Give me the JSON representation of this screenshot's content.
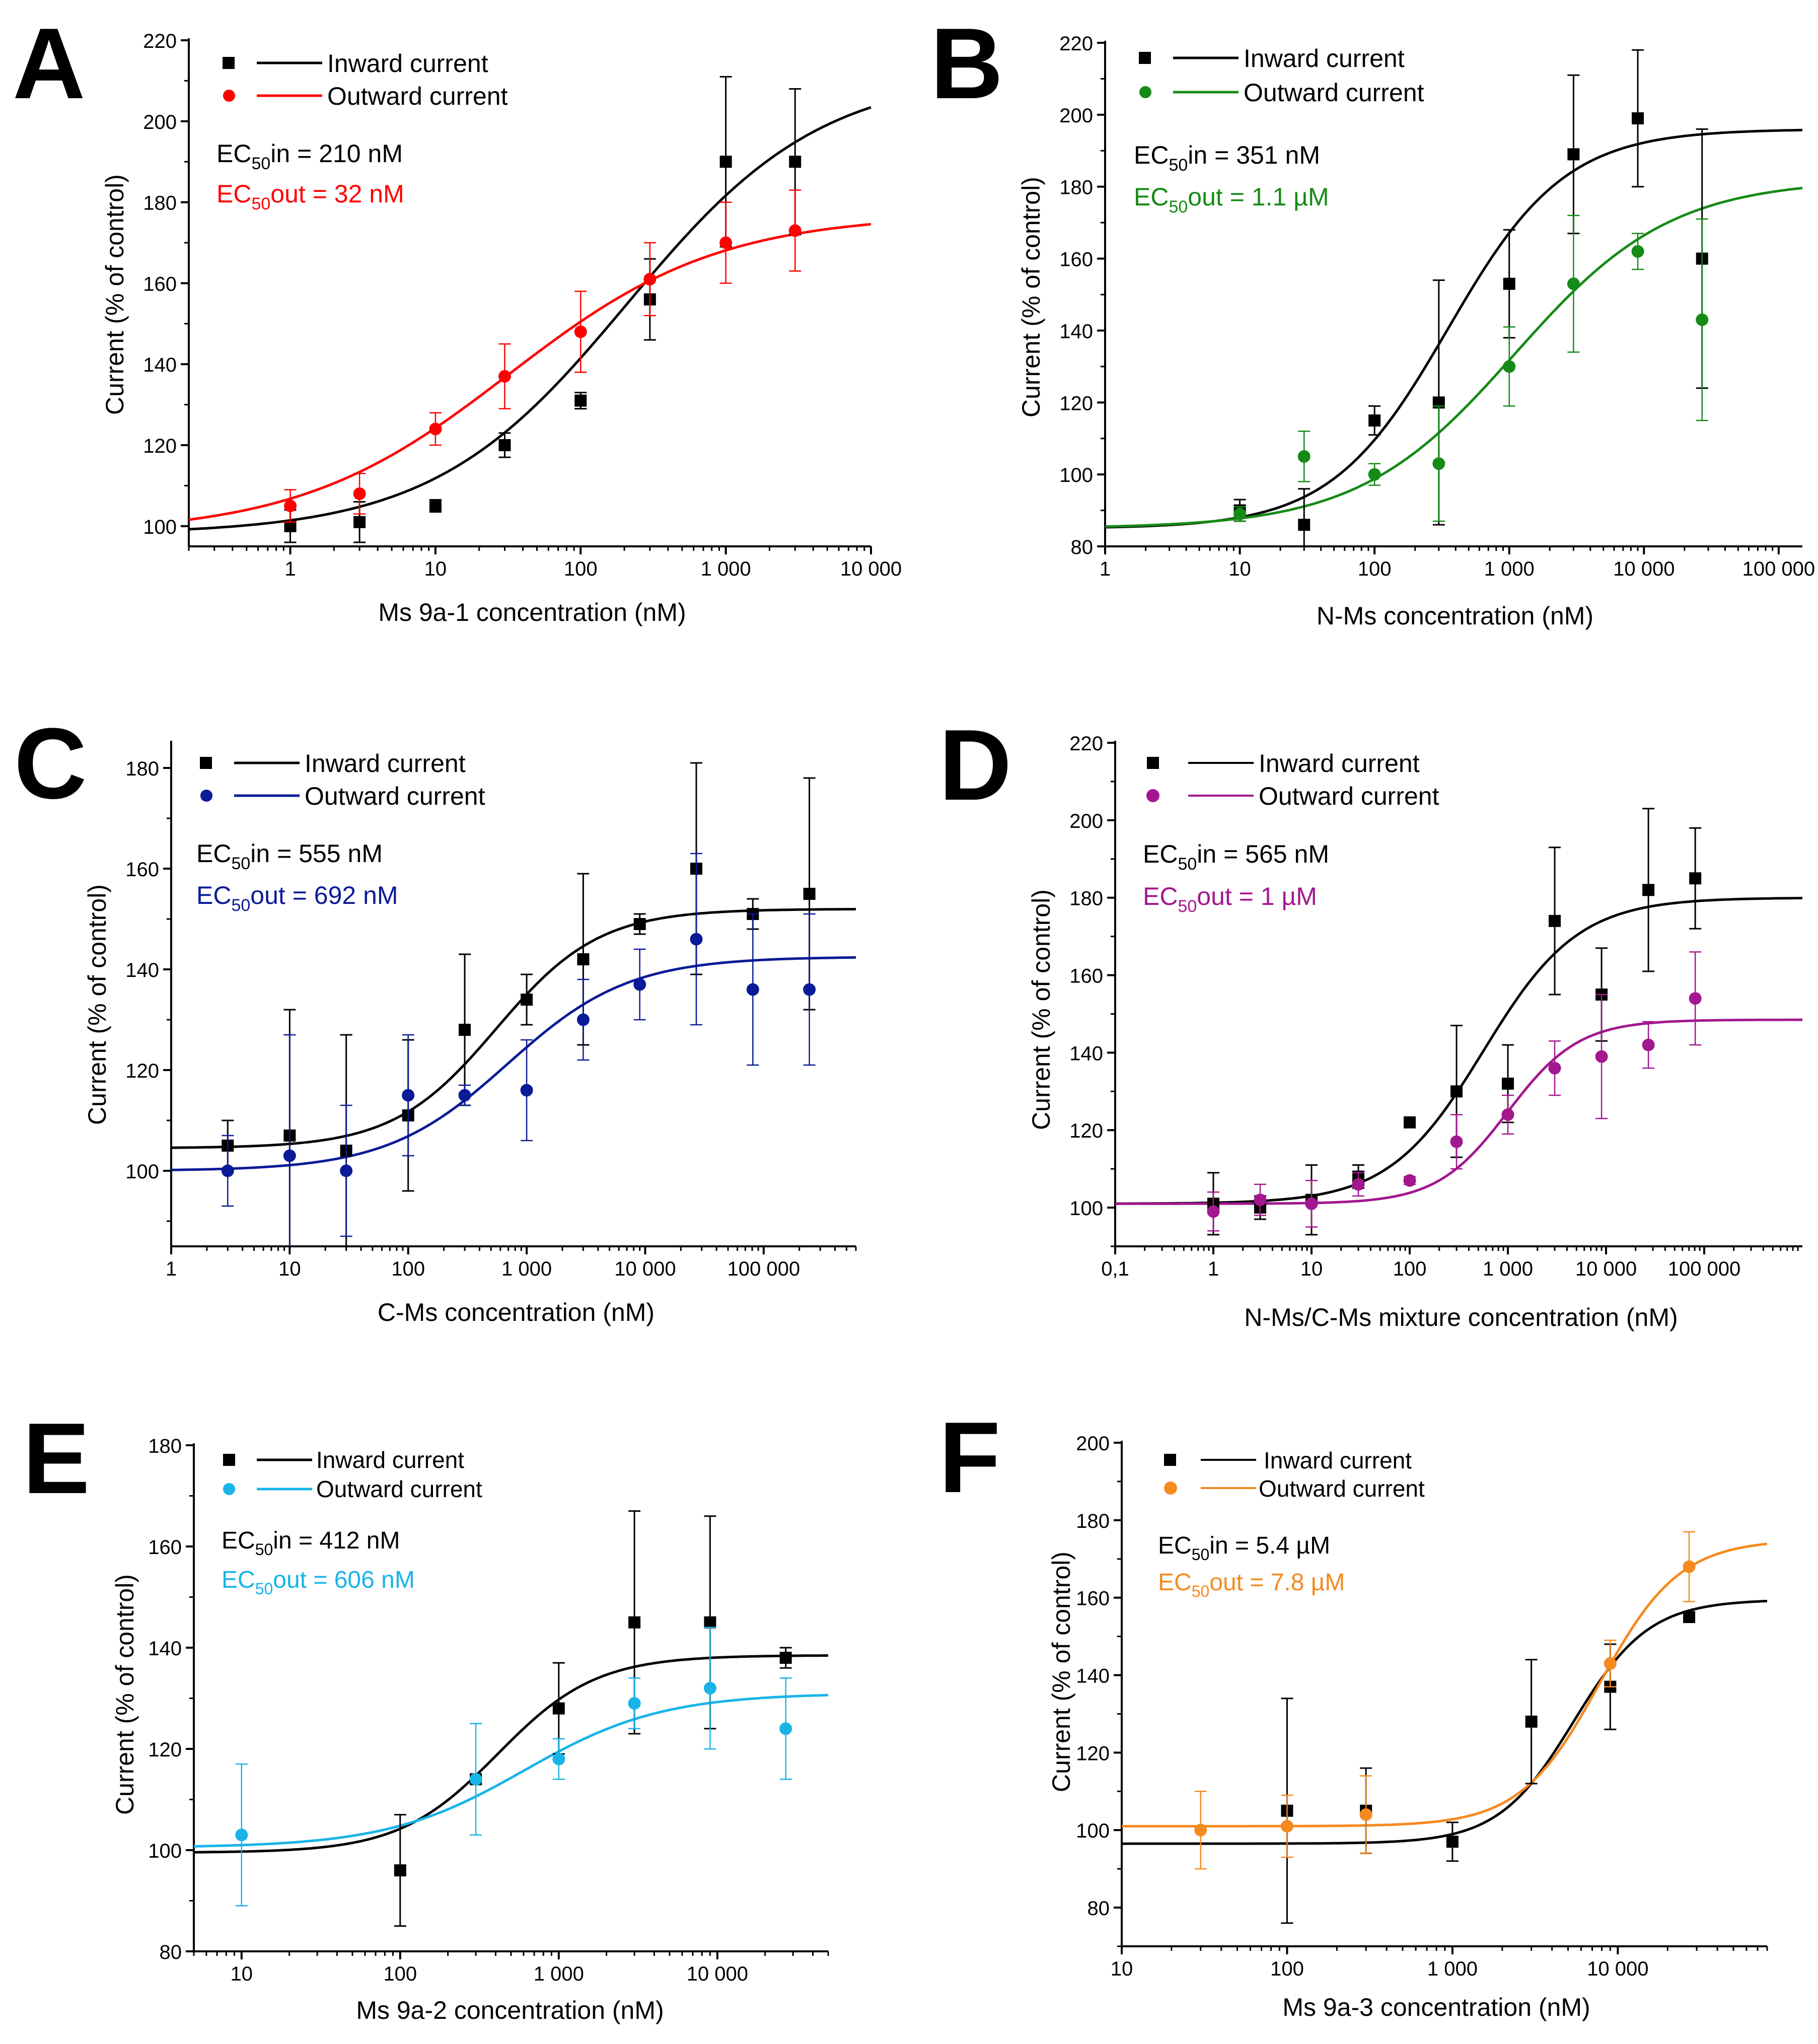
{
  "colors": {
    "inward": "#000000",
    "A_out": "#ff0000",
    "B_out": "#168a16",
    "C_out": "#0b1a96",
    "D_out": "#a3178f",
    "E_out": "#18b4e8",
    "F_out": "#f58a1f"
  },
  "chart_data": [
    {
      "type": "scatter",
      "panel_letter": "A",
      "xlabel": "Ms 9a-1 concentration (nM)",
      "ylabel": "Current (% of control)",
      "xscale": "log",
      "xlim": [
        0.2,
        10000
      ],
      "ylim": [
        95,
        220
      ],
      "xticks": [
        1,
        10,
        100,
        1000,
        10000
      ],
      "xtick_labels": [
        "1",
        "10",
        "100",
        "1 000",
        "10 000"
      ],
      "yticks": [
        100,
        120,
        140,
        160,
        180,
        200,
        220
      ],
      "legend": [
        "Inward current",
        "Outward current"
      ],
      "ec50_lines": [
        {
          "pre": "EC",
          "sub": "50",
          "post": "in = 210 nM",
          "series": "inward"
        },
        {
          "pre": "EC",
          "sub": "50",
          "post": "out = 32 nM",
          "series": "outward"
        }
      ],
      "series": [
        {
          "name": "Inward current",
          "key": "inward",
          "marker": "square",
          "x": [
            1,
            3,
            10,
            30,
            100,
            300,
            1000,
            3000
          ],
          "y": [
            100,
            101,
            105,
            120,
            131,
            156,
            190,
            190
          ],
          "err": [
            4,
            5,
            1.5,
            3,
            2,
            10,
            21,
            18
          ]
        },
        {
          "name": "Outward current",
          "key": "outward",
          "marker": "circle",
          "x": [
            1,
            3,
            10,
            30,
            100,
            300,
            1000,
            3000
          ],
          "y": [
            105,
            108,
            124,
            137,
            148,
            161,
            170,
            173
          ],
          "err": [
            4,
            5,
            4,
            8,
            10,
            9,
            10,
            10
          ]
        }
      ],
      "fits": [
        {
          "key": "inward",
          "bottom": 98,
          "top": 212,
          "ec50": 210,
          "hill": 0.65
        },
        {
          "key": "outward",
          "bottom": 98,
          "top": 177,
          "ec50": 32,
          "hill": 0.6
        }
      ]
    },
    {
      "type": "scatter",
      "panel_letter": "B",
      "xlabel": "N-Ms concentration (nM)",
      "ylabel": "Current (% of control)",
      "xscale": "log",
      "xlim": [
        1,
        150000
      ],
      "ylim": [
        80,
        220
      ],
      "xticks": [
        1,
        10,
        100,
        1000,
        10000,
        100000
      ],
      "xtick_labels": [
        "1",
        "10",
        "100",
        "1 000",
        "10 000",
        "100 000"
      ],
      "yticks": [
        80,
        100,
        120,
        140,
        160,
        180,
        200,
        220
      ],
      "legend": [
        "Inward current",
        "Outward current"
      ],
      "ec50_lines": [
        {
          "pre": "EC",
          "sub": "50",
          "post": "in = 351 nM",
          "series": "inward"
        },
        {
          "pre": "EC",
          "sub": "50",
          "post": "out = 1.1 µM",
          "series": "outward"
        }
      ],
      "series": [
        {
          "name": "Inward current",
          "key": "inward",
          "marker": "square",
          "x": [
            10,
            30,
            100,
            300,
            1000,
            3000,
            9000,
            27000
          ],
          "y": [
            90,
            86,
            115,
            120,
            153,
            189,
            199,
            160
          ],
          "err": [
            3,
            10,
            4,
            34,
            15,
            22,
            19,
            36
          ]
        },
        {
          "name": "Outward current",
          "key": "outward",
          "marker": "circle",
          "x": [
            10,
            30,
            100,
            300,
            1000,
            3000,
            9000,
            27000
          ],
          "y": [
            89,
            105,
            100,
            103,
            130,
            153,
            162,
            143
          ],
          "err": [
            2,
            7,
            3,
            16,
            11,
            19,
            5,
            28
          ]
        }
      ],
      "fits": [
        {
          "key": "inward",
          "bottom": 85,
          "top": 196,
          "ec50": 351,
          "hill": 1.0
        },
        {
          "key": "outward",
          "bottom": 85,
          "top": 182,
          "ec50": 1100,
          "hill": 0.75
        }
      ]
    },
    {
      "type": "scatter",
      "panel_letter": "C",
      "xlabel": "C-Ms concentration (nM)",
      "ylabel": "Current (% of control)",
      "xscale": "log",
      "xlim": [
        1,
        600000
      ],
      "ylim": [
        85,
        185
      ],
      "xticks": [
        1,
        10,
        100,
        1000,
        10000,
        100000
      ],
      "xtick_labels": [
        "1",
        "10",
        "100",
        "1 000",
        "10 000",
        "100 000"
      ],
      "yticks": [
        100,
        120,
        140,
        160,
        180
      ],
      "legend": [
        "Inward current",
        "Outward current"
      ],
      "ec50_lines": [
        {
          "pre": "EC",
          "sub": "50",
          "post": "in = 555 nM",
          "series": "inward"
        },
        {
          "pre": "EC",
          "sub": "50",
          "post": "out = 692 nM",
          "series": "outward"
        }
      ],
      "series": [
        {
          "name": "Inward current",
          "key": "inward",
          "marker": "square",
          "x": [
            3,
            10,
            30,
            100,
            300,
            1000,
            3000,
            9000,
            27000,
            81000,
            243000
          ],
          "y": [
            105,
            107,
            104,
            111,
            128,
            134,
            142,
            149,
            160,
            151,
            155
          ],
          "err": [
            5,
            25,
            23,
            15,
            15,
            5,
            17,
            2,
            21,
            3,
            23
          ]
        },
        {
          "name": "Outward current",
          "key": "outward",
          "marker": "circle",
          "x": [
            3,
            10,
            30,
            100,
            300,
            1000,
            3000,
            9000,
            27000,
            81000,
            243000
          ],
          "y": [
            100,
            103,
            100,
            115,
            115,
            116,
            130,
            137,
            146,
            136,
            136
          ],
          "err": [
            7,
            24,
            13,
            12,
            2,
            10,
            8,
            7,
            17,
            15,
            15
          ]
        }
      ],
      "fits": [
        {
          "key": "inward",
          "bottom": 104.5,
          "top": 152,
          "ec50": 555,
          "hill": 1.0
        },
        {
          "key": "outward",
          "bottom": 100,
          "top": 142.5,
          "ec50": 692,
          "hill": 0.85
        }
      ]
    },
    {
      "type": "scatter",
      "panel_letter": "D",
      "xlabel": "N-Ms/C-Ms mixture concentration (nM)",
      "ylabel": "Current (% of control)",
      "xscale": "log",
      "xlim": [
        0.1,
        1000000
      ],
      "ylim": [
        90,
        220
      ],
      "xticks": [
        0.1,
        1,
        10,
        100,
        1000,
        10000,
        100000
      ],
      "xtick_labels": [
        "0,1",
        "1",
        "10",
        "100",
        "1 000",
        "10 000",
        "100 000"
      ],
      "yticks": [
        100,
        120,
        140,
        160,
        180,
        200,
        220
      ],
      "legend": [
        "Inward current",
        "Outward current"
      ],
      "ec50_lines": [
        {
          "pre": "EC",
          "sub": "50",
          "post": "in = 565 nM",
          "series": "inward"
        },
        {
          "pre": "EC",
          "sub": "50",
          "post": "out = 1 µM",
          "series": "outward"
        }
      ],
      "series": [
        {
          "name": "Inward current",
          "key": "inward",
          "marker": "square",
          "x": [
            1,
            3,
            10,
            30,
            100,
            300,
            1000,
            3000,
            9000,
            27000,
            81000
          ],
          "y": [
            101,
            100,
            102,
            108,
            122,
            130,
            132,
            174,
            155,
            182,
            185
          ],
          "err": [
            8,
            3,
            9,
            3,
            1,
            17,
            10,
            19,
            12,
            21,
            13
          ]
        },
        {
          "name": "Outward current",
          "key": "outward",
          "marker": "circle",
          "x": [
            1,
            3,
            10,
            30,
            100,
            300,
            1000,
            3000,
            9000,
            27000,
            81000
          ],
          "y": [
            99,
            102,
            101,
            106,
            107,
            117,
            124,
            136,
            139,
            142,
            154
          ],
          "err": [
            5,
            4,
            6,
            3,
            1,
            7,
            5,
            7,
            16,
            6,
            12
          ]
        }
      ],
      "fits": [
        {
          "key": "inward",
          "bottom": 101,
          "top": 180,
          "ec50": 565,
          "hill": 0.9
        },
        {
          "key": "outward",
          "bottom": 101,
          "top": 148.5,
          "ec50": 1000,
          "hill": 1.2
        }
      ]
    },
    {
      "type": "scatter",
      "panel_letter": "E",
      "xlabel": "Ms 9a-2 concentration (nM)",
      "ylabel": "Current (% of control)",
      "xscale": "log",
      "xlim": [
        5,
        50000
      ],
      "ylim": [
        80,
        180
      ],
      "xticks": [
        10,
        100,
        1000,
        10000
      ],
      "xtick_labels": [
        "10",
        "100",
        "1 000",
        "10 000"
      ],
      "yticks": [
        80,
        100,
        120,
        140,
        160,
        180
      ],
      "legend": [
        "Inward current",
        "Outward current"
      ],
      "ec50_lines": [
        {
          "pre": "EC",
          "sub": "50",
          "post": "in = 412 nM",
          "series": "inward"
        },
        {
          "pre": "EC",
          "sub": "50",
          "post": "out = 606 nM",
          "series": "outward"
        }
      ],
      "series": [
        {
          "name": "Inward current",
          "key": "inward",
          "marker": "square",
          "x": [
            100,
            300,
            1000,
            3000,
            9000,
            27000
          ],
          "y": [
            96,
            114,
            128,
            145,
            145,
            138
          ],
          "err": [
            11,
            0.5,
            9,
            22,
            21,
            2
          ]
        },
        {
          "name": "Outward current",
          "key": "outward",
          "marker": "circle",
          "x": [
            10,
            300,
            1000,
            3000,
            9000,
            27000
          ],
          "y": [
            103,
            114,
            118,
            129,
            132,
            124
          ],
          "err": [
            14,
            11,
            4,
            5,
            12,
            10
          ]
        }
      ],
      "fits": [
        {
          "key": "inward",
          "bottom": 99.5,
          "top": 138.5,
          "ec50": 412,
          "hill": 1.4
        },
        {
          "key": "outward",
          "bottom": 100.5,
          "top": 131,
          "ec50": 606,
          "hill": 1.0
        }
      ]
    },
    {
      "type": "scatter",
      "panel_letter": "F",
      "xlabel": "Ms 9a-3 concentration (nM)",
      "ylabel": "Current (% of control)",
      "xscale": "log",
      "xlim": [
        10,
        80000
      ],
      "ylim": [
        70,
        200
      ],
      "xticks": [
        10,
        100,
        1000,
        10000
      ],
      "xtick_labels": [
        "10",
        "100",
        "1 000",
        "10 000"
      ],
      "yticks": [
        80,
        100,
        120,
        140,
        160,
        180,
        200
      ],
      "legend": [
        "Inward current",
        "Outward current"
      ],
      "ec50_lines": [
        {
          "pre": "EC",
          "sub": "50",
          "post": "in = 5.4 µM",
          "series": "inward"
        },
        {
          "pre": "EC",
          "sub": "50",
          "post": "out = 7.8 µM",
          "series": "outward"
        }
      ],
      "series": [
        {
          "name": "Inward current",
          "key": "inward",
          "marker": "square",
          "x": [
            100,
            300,
            1000,
            3000,
            9000,
            27000
          ],
          "y": [
            105,
            105,
            97,
            128,
            137,
            155
          ],
          "err": [
            29,
            11,
            5,
            16,
            11,
            1
          ]
        },
        {
          "name": "Outward current",
          "key": "outward",
          "marker": "circle",
          "x": [
            30,
            100,
            300,
            9000,
            27000
          ],
          "y": [
            100,
            101,
            104,
            143,
            168
          ],
          "err": [
            10,
            8,
            10,
            6,
            9
          ]
        }
      ],
      "fits": [
        {
          "key": "inward",
          "bottom": 96.5,
          "top": 159.5,
          "ec50": 5400,
          "hill": 1.9
        },
        {
          "key": "outward",
          "bottom": 101,
          "top": 175,
          "ec50": 7800,
          "hill": 1.8
        }
      ]
    }
  ]
}
